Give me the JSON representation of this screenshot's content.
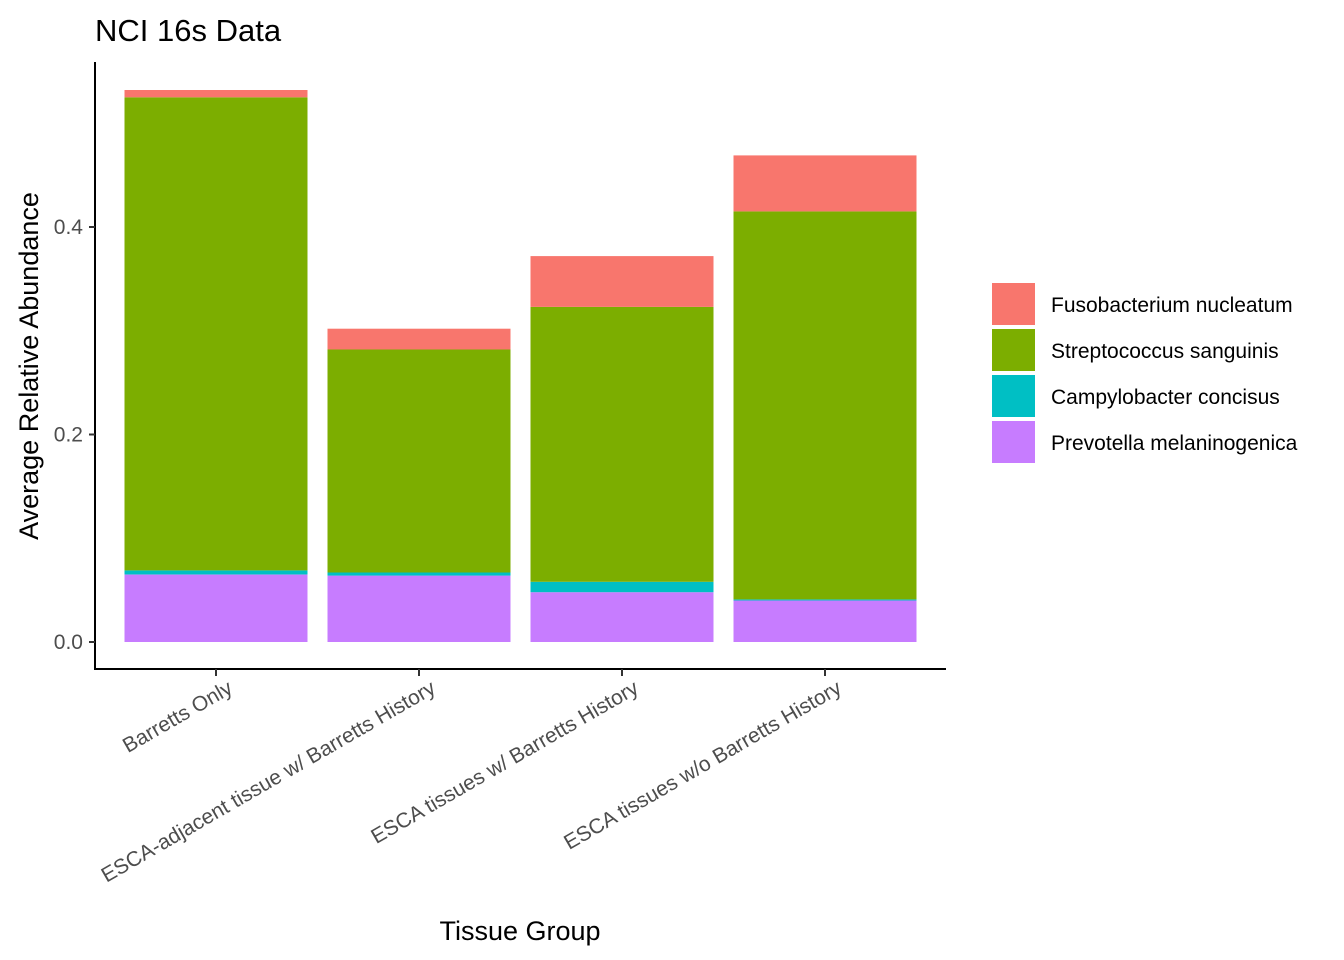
{
  "chart_data": {
    "type": "bar",
    "stacked": true,
    "title": "NCI 16s Data",
    "xlabel": "Tissue Group",
    "ylabel": "Average Relative Abundance",
    "ylim": [
      -0.013,
      0.555
    ],
    "yticks": [
      0.0,
      0.2,
      0.4
    ],
    "ytick_labels": [
      "0.0",
      "0.2",
      "0.4"
    ],
    "grid": false,
    "legend_position": "right",
    "categories": [
      "Barretts Only",
      "ESCA-adjacent tissue w/ Barretts History",
      "ESCA tissues w/ Barretts History",
      "ESCA tissues w/o Barretts History"
    ],
    "series": [
      {
        "name": "Prevotella melaninogenica",
        "color": "#C77CFF",
        "values": [
          0.065,
          0.064,
          0.048,
          0.04
        ]
      },
      {
        "name": "Campylobacter concisus",
        "color": "#00BFC4",
        "values": [
          0.004,
          0.003,
          0.01,
          0.001
        ]
      },
      {
        "name": "Streptococcus sanguinis",
        "color": "#7CAE00",
        "values": [
          0.456,
          0.215,
          0.265,
          0.374
        ]
      },
      {
        "name": "Fusobacterium nucleatum",
        "color": "#F8766D",
        "values": [
          0.007,
          0.02,
          0.049,
          0.054
        ]
      }
    ],
    "legend_order": [
      "Fusobacterium nucleatum",
      "Streptococcus sanguinis",
      "Campylobacter concisus",
      "Prevotella melaninogenica"
    ]
  }
}
